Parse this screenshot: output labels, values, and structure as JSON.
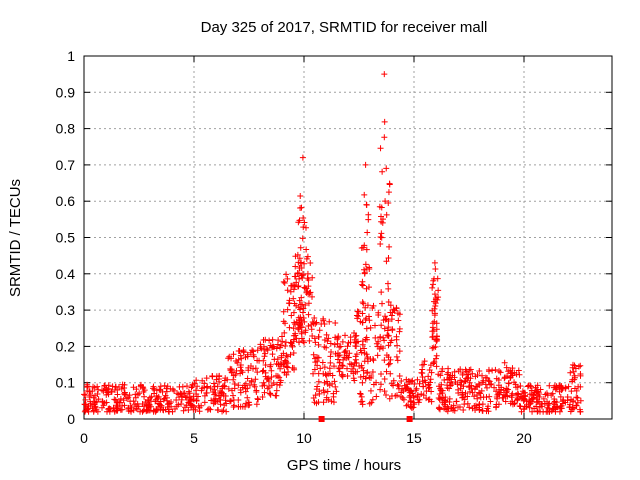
{
  "chart_data": {
    "type": "scatter",
    "title": "Day 325 of 2017, SRMTID for receiver mall",
    "xlabel": "GPS time / hours",
    "ylabel": "SRMTID / TECUs",
    "xlim": [
      0,
      24
    ],
    "ylim": [
      0,
      1
    ],
    "grid": true,
    "marker": "+",
    "color": "#ff0000",
    "x_ticks": [
      0,
      5,
      10,
      15,
      20
    ],
    "y_ticks": [
      0,
      0.1,
      0.2,
      0.3,
      0.4,
      0.5,
      0.6,
      0.7,
      0.8,
      0.9,
      1
    ],
    "x_tick_labels": [
      "0",
      "5",
      "10",
      "15",
      "20"
    ],
    "y_tick_labels": [
      "0",
      "0.1",
      "0.2",
      "0.3",
      "0.4",
      "0.5",
      "0.6",
      "0.7",
      "0.8",
      "0.9",
      "1"
    ],
    "baseline_markers": [
      10.8,
      14.8
    ],
    "series": [
      {
        "name": "SRMTID",
        "segments": [
          {
            "x0": 0.0,
            "x1": 5.0,
            "base": 0.055,
            "spread": 0.04,
            "count": 260
          },
          {
            "x0": 5.0,
            "x1": 6.5,
            "base": 0.07,
            "spread": 0.05,
            "count": 80
          },
          {
            "x0": 6.5,
            "x1": 8.0,
            "base": 0.11,
            "spread": 0.08,
            "count": 90
          },
          {
            "x0": 8.0,
            "x1": 9.0,
            "base": 0.14,
            "spread": 0.08,
            "count": 70
          },
          {
            "x0": 9.0,
            "x1": 9.6,
            "base": 0.26,
            "spread": 0.14,
            "count": 60
          },
          {
            "x0": 9.6,
            "x1": 10.4,
            "base": 0.33,
            "spread": 0.12,
            "count": 70
          },
          {
            "x0": 10.4,
            "x1": 11.5,
            "base": 0.16,
            "spread": 0.12,
            "count": 80
          },
          {
            "x0": 11.5,
            "x1": 12.4,
            "base": 0.17,
            "spread": 0.07,
            "count": 60
          },
          {
            "x0": 12.4,
            "x1": 14.4,
            "base": 0.18,
            "spread": 0.14,
            "count": 140
          },
          {
            "x0": 14.4,
            "x1": 15.3,
            "base": 0.07,
            "spread": 0.04,
            "count": 50
          },
          {
            "x0": 15.3,
            "x1": 15.8,
            "base": 0.1,
            "spread": 0.06,
            "count": 30
          },
          {
            "x0": 15.8,
            "x1": 16.1,
            "base": 0.28,
            "spread": 0.14,
            "count": 30
          },
          {
            "x0": 16.1,
            "x1": 19.0,
            "base": 0.08,
            "spread": 0.06,
            "count": 180
          },
          {
            "x0": 19.0,
            "x1": 19.8,
            "base": 0.1,
            "spread": 0.06,
            "count": 50
          },
          {
            "x0": 19.8,
            "x1": 22.0,
            "base": 0.055,
            "spread": 0.04,
            "count": 130
          },
          {
            "x0": 22.0,
            "x1": 22.6,
            "base": 0.08,
            "spread": 0.07,
            "count": 40
          }
        ],
        "spikes": [
          {
            "x0": 9.7,
            "x1": 10.2,
            "peak": 0.72,
            "count": 28
          },
          {
            "x0": 12.6,
            "x1": 13.0,
            "peak": 0.7,
            "count": 25
          },
          {
            "x0": 13.4,
            "x1": 13.9,
            "peak": 0.95,
            "count": 32
          },
          {
            "x0": 15.8,
            "x1": 16.1,
            "peak": 0.43,
            "count": 14
          }
        ]
      }
    ]
  }
}
